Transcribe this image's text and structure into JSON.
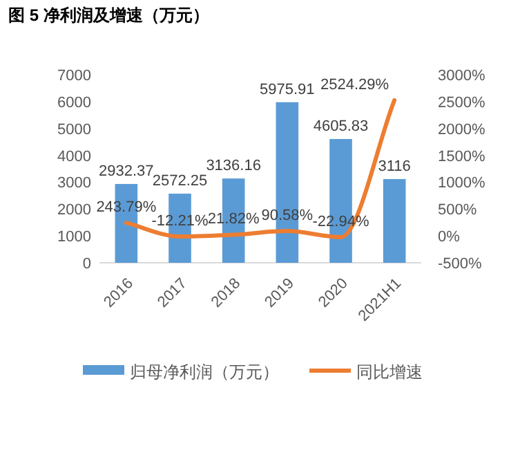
{
  "chart_data": {
    "type": "bar",
    "title": "图 5 净利润及增速（万元）",
    "categories": [
      "2016",
      "2017",
      "2018",
      "2019",
      "2020",
      "2021H1"
    ],
    "series": [
      {
        "name": "归母净利润（万元）",
        "color": "#5b9bd5",
        "values": [
          2932.37,
          2572.25,
          3136.16,
          5975.91,
          4605.83,
          3116
        ]
      },
      {
        "name": "同比增速",
        "type": "line",
        "axis": "y2",
        "color": "#ed7d31",
        "values": [
          243.79,
          -12.21,
          21.82,
          90.58,
          -22.94,
          2524.29
        ],
        "value_labels": [
          "243.79%",
          "-12.21%",
          "21.82%",
          "90.58%",
          "-22.94%",
          "2524.29%"
        ]
      }
    ],
    "data_labels": true,
    "ylim": [
      0,
      7000
    ],
    "yticks": [
      0,
      1000,
      2000,
      3000,
      4000,
      5000,
      6000,
      7000
    ],
    "y2lim": [
      -500,
      3000
    ],
    "y2ticks": [
      {
        "value": -500,
        "label": "-500%"
      },
      {
        "value": 0,
        "label": "0%"
      },
      {
        "value": 500,
        "label": "500%"
      },
      {
        "value": 1000,
        "label": "1000%"
      },
      {
        "value": 1500,
        "label": "1500%"
      },
      {
        "value": 2000,
        "label": "2000%"
      },
      {
        "value": 2500,
        "label": "2500%"
      },
      {
        "value": 3000,
        "label": "3000%"
      }
    ],
    "legend": "bottom",
    "grid": false
  }
}
